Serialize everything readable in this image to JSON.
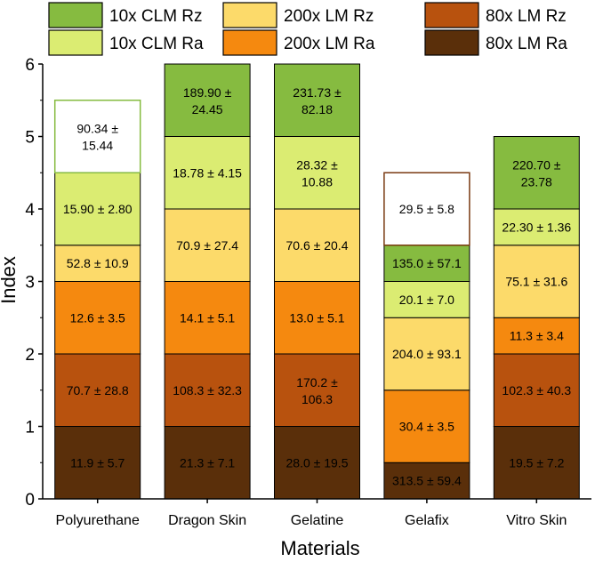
{
  "chart_data": {
    "type": "bar",
    "stacked": true,
    "xlabel": "Materials",
    "ylabel": "Index",
    "ylim": [
      0,
      6
    ],
    "yticks": [
      "0",
      "1",
      "2",
      "3",
      "4",
      "5",
      "6"
    ],
    "legend_position": "top",
    "categories": [
      "Polyurethane",
      "Dragon Skin",
      "Gelatine",
      "Gelafix",
      "Vitro Skin"
    ],
    "series": [
      {
        "name": "80x LM Ra",
        "color": "#5a2f0a",
        "values": [
          1,
          1,
          1,
          0.5,
          1
        ],
        "labels": [
          "11.9 ± 5.7",
          "21.3 ± 7.1",
          "28.0 ± 19.5",
          "313.5 ± 59.4",
          "19.5 ± 7.2"
        ]
      },
      {
        "name": "80x LM Rz",
        "color": "#b8520e",
        "values": [
          1,
          1,
          1,
          0,
          1
        ],
        "labels": [
          "70.7 ± 28.8",
          "108.3 ± 32.3",
          "170.2 ± 106.3",
          "",
          "102.3 ± 40.3"
        ]
      },
      {
        "name": "200x LM Ra",
        "color": "#f5890f",
        "values": [
          1,
          1,
          1,
          1,
          0.5
        ],
        "labels": [
          "12.6 ± 3.5",
          "14.1 ± 5.1",
          "13.0 ± 5.1",
          "30.4 ± 3.5",
          "11.3 ± 3.4"
        ]
      },
      {
        "name": "200x LM Rz",
        "color": "#fcda6a",
        "values": [
          0.5,
          1,
          1,
          1,
          1
        ],
        "labels": [
          "52.8 ± 10.9",
          "70.9 ± 27.4",
          "70.6 ± 20.4",
          "204.0 ± 93.1",
          "75.1 ± 31.6"
        ]
      },
      {
        "name": "10x CLM Ra",
        "color": "#dbec72",
        "values": [
          1,
          1,
          1,
          0.5,
          0.5
        ],
        "labels": [
          "15.90 ± 2.80",
          "18.78 ± 4.15",
          "28.32 ± 10.88",
          "20.1 ± 7.0",
          "22.30 ± 1.36"
        ]
      },
      {
        "name": "10x CLM Rz",
        "color": "#86bb40",
        "values": [
          1,
          1,
          1,
          0.5,
          1
        ],
        "labels": [
          "90.34 ± 15.44",
          "189.90 ± 24.45",
          "231.73 ± 82.18",
          "135.0 ± 57.1",
          "220.70 ± 23.78"
        ]
      },
      {
        "name": "",
        "color": "#ffffff",
        "values": [
          0,
          0,
          0,
          1,
          0
        ],
        "labels": [
          "",
          "",
          "",
          "29.5 ± 5.8",
          ""
        ]
      }
    ],
    "open_boxes": [
      {
        "category": "Polyurethane",
        "series": "10x CLM Rz",
        "border_color": "#86bb40"
      },
      {
        "category": "Gelafix",
        "series": "",
        "border_color": "#7a3a12"
      }
    ],
    "legend": [
      {
        "label": "10x CLM Rz",
        "color": "#86bb40"
      },
      {
        "label": "200x LM Rz",
        "color": "#fcda6a"
      },
      {
        "label": "80x LM Rz",
        "color": "#b8520e"
      },
      {
        "label": "10x CLM Ra",
        "color": "#dbec72"
      },
      {
        "label": "200x LM Ra",
        "color": "#f5890f"
      },
      {
        "label": "80x LM Ra",
        "color": "#5a2f0a"
      }
    ]
  }
}
